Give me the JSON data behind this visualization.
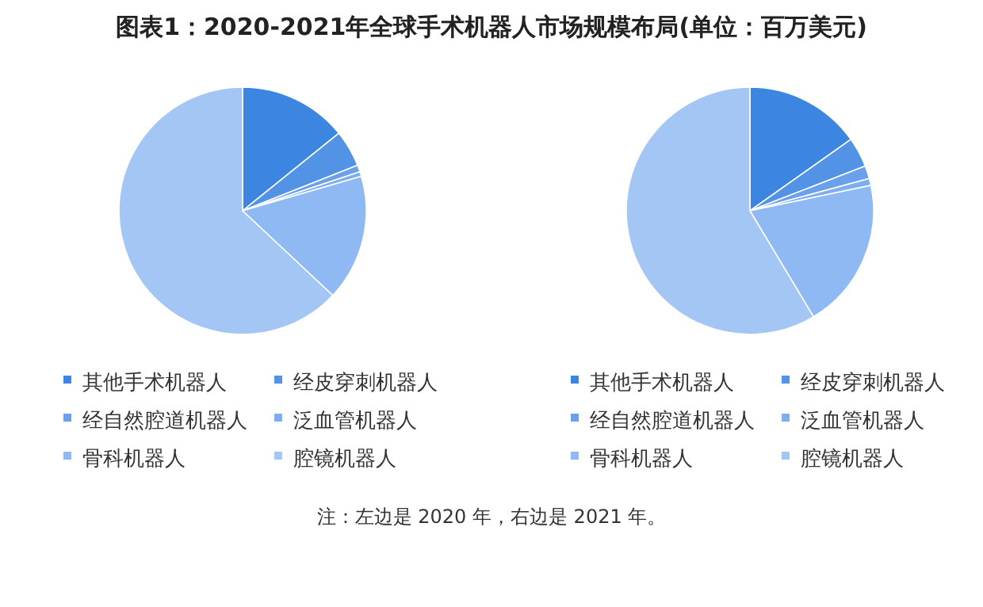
{
  "chart_data": [
    {
      "type": "pie",
      "title": "图表1：2020-2021年全球手术机器人市场规模布局(单位：百万美元)",
      "categories": [
        "其他手术机器人",
        "经皮穿刺机器人",
        "经自然腔道机器人",
        "泛血管机器人",
        "骨科机器人",
        "腔镜机器人"
      ],
      "values": [
        14.2,
        4.8,
        0.9,
        0.6,
        16.5,
        63.0
      ],
      "colors": [
        "#3c85e0",
        "#5293e6",
        "#6aa1ea",
        "#7eaeee",
        "#8fb9f3",
        "#a3c6f5"
      ],
      "legend": "bottom"
    },
    {
      "type": "pie",
      "categories": [
        "其他手术机器人",
        "经皮穿刺机器人",
        "经自然腔道机器人",
        "泛血管机器人",
        "骨科机器人",
        "腔镜机器人"
      ],
      "values": [
        15.2,
        3.9,
        1.7,
        0.9,
        19.7,
        58.6
      ],
      "colors": [
        "#3c85e0",
        "#5293e6",
        "#6aa1ea",
        "#7eaeee",
        "#8fb9f3",
        "#a3c6f5"
      ],
      "legend": "bottom",
      "annotations": [
        "注：左边是 2020 年，右边是 2021 年。"
      ]
    }
  ]
}
